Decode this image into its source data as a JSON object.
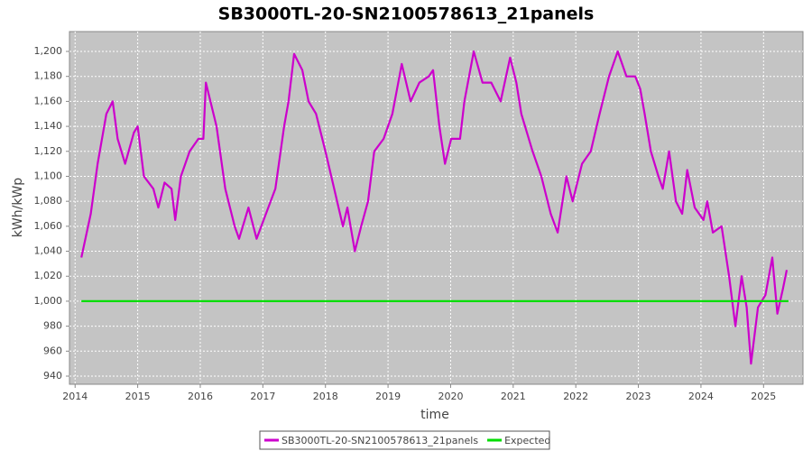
{
  "chart_data": {
    "type": "line",
    "title": "SB3000TL-20-SN2100578613_21panels",
    "xlabel": "time",
    "ylabel": "kWh/kWp",
    "xlim": [
      2013.91,
      2025.63
    ],
    "ylim": [
      933.5,
      1215.9
    ],
    "xticks": [
      2014,
      2015,
      2016,
      2017,
      2018,
      2019,
      2020,
      2021,
      2022,
      2023,
      2024,
      2025
    ],
    "yticks": [
      940,
      960,
      980,
      {
        "value": 1000,
        "label": "1,000"
      },
      {
        "value": 1020,
        "label": "1,020"
      },
      {
        "value": 1040,
        "label": "1,040"
      },
      {
        "value": 1060,
        "label": "1,060"
      },
      {
        "value": 1080,
        "label": "1,080"
      },
      {
        "value": 1100,
        "label": "1,100"
      },
      {
        "value": 1120,
        "label": "1,120"
      },
      {
        "value": 1140,
        "label": "1,140"
      },
      {
        "value": 1160,
        "label": "1,160"
      },
      {
        "value": 1180,
        "label": "1,180"
      },
      {
        "value": 1200,
        "label": "1,200"
      }
    ],
    "grid": true,
    "legend": "bottom",
    "series": [
      {
        "name": "SB3000TL-20-SN2100578613_21panels",
        "color": "#cc00cc",
        "x": [
          2014.1,
          2014.25,
          2014.36,
          2014.5,
          2014.6,
          2014.68,
          2014.8,
          2014.94,
          2015.0,
          2015.1,
          2015.25,
          2015.33,
          2015.43,
          2015.54,
          2015.6,
          2015.69,
          2015.83,
          2015.97,
          2016.05,
          2016.09,
          2016.26,
          2016.4,
          2016.55,
          2016.62,
          2016.77,
          2016.9,
          2017.05,
          2017.2,
          2017.34,
          2017.41,
          2017.5,
          2017.63,
          2017.73,
          2017.85,
          2018.0,
          2018.14,
          2018.28,
          2018.35,
          2018.47,
          2018.57,
          2018.68,
          2018.78,
          2018.93,
          2019.07,
          2019.22,
          2019.36,
          2019.5,
          2019.65,
          2019.72,
          2019.82,
          2019.91,
          2020.01,
          2020.15,
          2020.22,
          2020.37,
          2020.51,
          2020.65,
          2020.8,
          2020.95,
          2021.05,
          2021.13,
          2021.31,
          2021.45,
          2021.6,
          2021.71,
          2021.85,
          2021.95,
          2022.1,
          2022.24,
          2022.38,
          2022.53,
          2022.67,
          2022.81,
          2022.95,
          2023.03,
          2023.1,
          2023.2,
          2023.32,
          2023.39,
          2023.49,
          2023.6,
          2023.7,
          2023.78,
          2023.9,
          2024.04,
          2024.1,
          2024.19,
          2024.33,
          2024.45,
          2024.55,
          2024.65,
          2024.73,
          2024.8,
          2024.91,
          2025.03,
          2025.14,
          2025.22,
          2025.31,
          2025.37
        ],
        "values": [
          1035,
          1070,
          1110,
          1150,
          1160,
          1130,
          1110,
          1135,
          1140,
          1100,
          1090,
          1075,
          1095,
          1090,
          1065,
          1100,
          1120,
          1130,
          1130,
          1175,
          1140,
          1090,
          1060,
          1050,
          1075,
          1050,
          1070,
          1090,
          1140,
          1160,
          1198,
          1185,
          1160,
          1150,
          1120,
          1090,
          1060,
          1075,
          1040,
          1060,
          1080,
          1120,
          1130,
          1150,
          1190,
          1160,
          1175,
          1180,
          1185,
          1140,
          1110,
          1130,
          1130,
          1160,
          1200,
          1175,
          1175,
          1160,
          1195,
          1175,
          1150,
          1120,
          1100,
          1070,
          1055,
          1100,
          1080,
          1110,
          1120,
          1150,
          1180,
          1200,
          1180,
          1180,
          1170,
          1150,
          1120,
          1100,
          1090,
          1120,
          1080,
          1070,
          1105,
          1075,
          1065,
          1080,
          1055,
          1060,
          1020,
          980,
          1020,
          995,
          950,
          995,
          1005,
          1035,
          990,
          1010,
          1025
        ]
      },
      {
        "name": "Expected",
        "color": "#00dd00",
        "x": [
          2014.1,
          2025.4
        ],
        "values": [
          1000,
          1000
        ]
      }
    ]
  }
}
